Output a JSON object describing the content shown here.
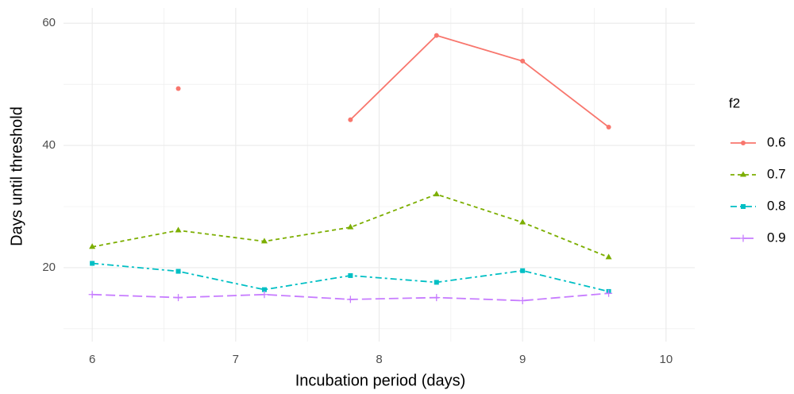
{
  "chart_data": {
    "type": "line",
    "x_label": "Incubation period (days)",
    "y_label": "Days until threshold",
    "x": [
      6,
      6.6,
      7.2,
      7.8,
      8.4,
      9.0,
      9.6
    ],
    "series": [
      {
        "name": "0.6",
        "color": "#F8766D",
        "dash": "none",
        "marker": "circle",
        "values": [
          null,
          49.3,
          null,
          44.2,
          58,
          53.8,
          43
        ]
      },
      {
        "name": "0.7",
        "color": "#7CAE00",
        "dash": "5,4",
        "marker": "triangle",
        "values": [
          23.4,
          26.1,
          24.3,
          26.6,
          32,
          27.4,
          21.7
        ]
      },
      {
        "name": "0.8",
        "color": "#00BFC4",
        "dash": "8,4,3,4",
        "marker": "square",
        "values": [
          20.7,
          19.4,
          16.4,
          18.7,
          17.6,
          19.5,
          16.1
        ]
      },
      {
        "name": "0.9",
        "color": "#C77CFF",
        "dash": "12,5",
        "marker": "plus",
        "values": [
          15.6,
          15.1,
          15.6,
          14.8,
          15.1,
          14.6,
          15.8
        ]
      }
    ],
    "legend_title": "f2",
    "legend_position": "right",
    "xlim": [
      5.8,
      10.2
    ],
    "xticks": [
      6,
      7,
      8,
      9,
      10
    ],
    "ylim": [
      7.9,
      62.5
    ],
    "yticks": [
      20,
      40,
      60
    ],
    "grid": true,
    "minor_grid": true
  }
}
